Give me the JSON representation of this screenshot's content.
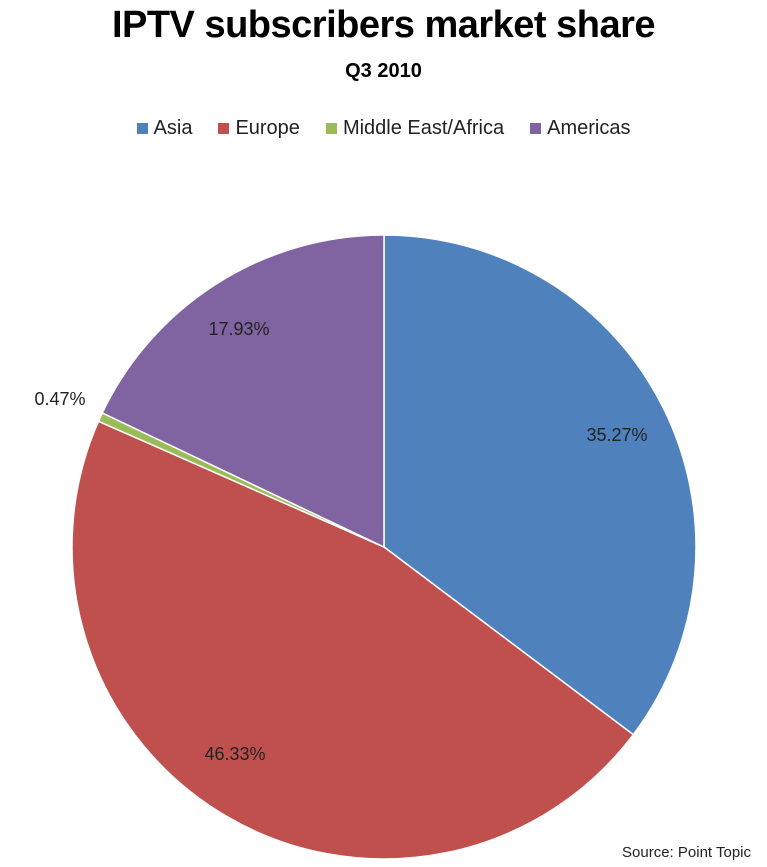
{
  "chart_data": {
    "type": "pie",
    "title": "IPTV subscribers market share",
    "subtitle": "Q3 2010",
    "legend_position": "top",
    "slices": [
      {
        "name": "Asia",
        "value": 35.27,
        "label": "35.27%",
        "color": "#4f81bd"
      },
      {
        "name": "Europe",
        "value": 46.33,
        "label": "46.33%",
        "color": "#c0504d"
      },
      {
        "name": "Middle East/Africa",
        "value": 0.47,
        "label": "0.47%",
        "color": "#9bbb59"
      },
      {
        "name": "Americas",
        "value": 17.93,
        "label": "17.93%",
        "color": "#8064a2"
      }
    ]
  },
  "source": "Source: Point Topic"
}
